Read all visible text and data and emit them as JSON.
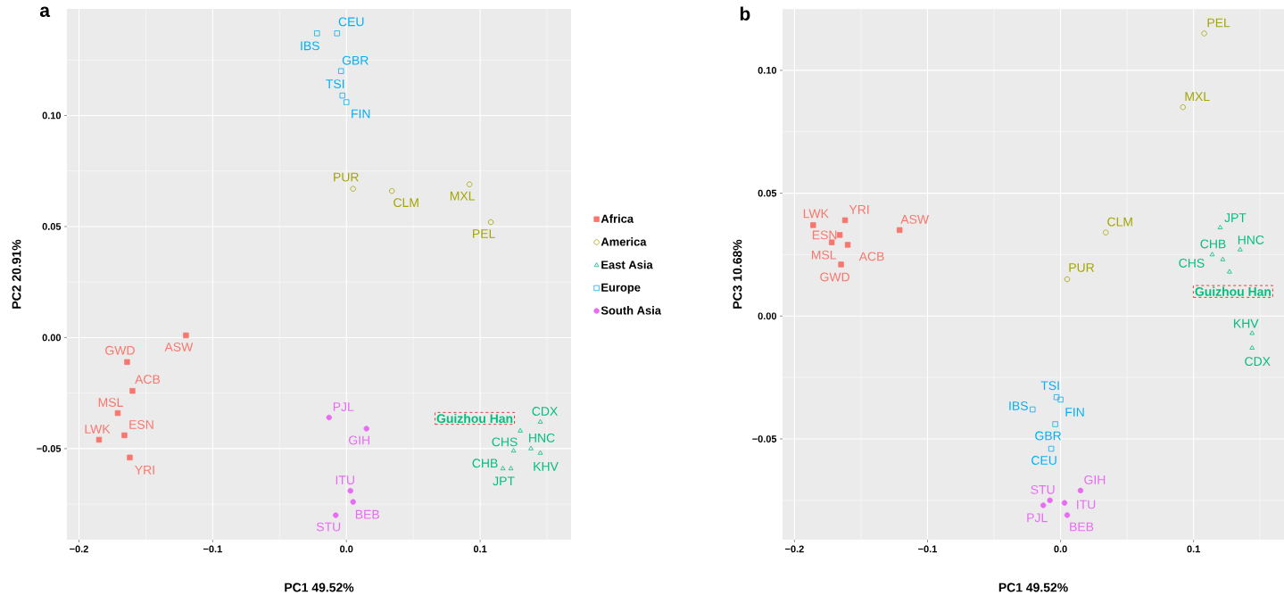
{
  "chart_data": [
    {
      "type": "scatter",
      "title": "a",
      "xlabel": "PC1 49.52%",
      "ylabel": "PC2 20.91%",
      "xlim": [
        -0.209,
        0.168
      ],
      "ylim": [
        -0.091,
        0.148
      ],
      "grid": true,
      "legend": "right",
      "xticks": [
        {
          "value": -0.2,
          "label": "−0.2"
        },
        {
          "value": -0.1,
          "label": "−0.1"
        },
        {
          "value": 0.0,
          "label": "0.0"
        },
        {
          "value": 0.1,
          "label": "0.1"
        }
      ],
      "yticks": [
        {
          "value": -0.05,
          "label": "−0.05"
        },
        {
          "value": 0.0,
          "label": "0.00"
        },
        {
          "value": 0.05,
          "label": "0.05"
        },
        {
          "value": 0.1,
          "label": "0.10"
        }
      ],
      "series": [
        {
          "name": "Africa",
          "color": "#f8766d",
          "marker": "square",
          "x": [
            -0.12,
            -0.164,
            -0.16,
            -0.171,
            -0.166,
            -0.185,
            -0.162
          ],
          "values": [
            0.001,
            -0.011,
            -0.024,
            -0.034,
            -0.044,
            -0.046,
            -0.054
          ]
        },
        {
          "name": "America",
          "color": "#a3a500",
          "marker": "circle",
          "x": [
            0.005,
            0.034,
            0.092,
            0.108
          ],
          "values": [
            0.067,
            0.066,
            0.069,
            0.052
          ]
        },
        {
          "name": "East Asia",
          "color": "#00bf7d",
          "marker": "triangle",
          "x": [
            0.145,
            0.125,
            0.138,
            0.145,
            0.117,
            0.123,
            0.13
          ],
          "values": [
            -0.038,
            -0.051,
            -0.05,
            -0.052,
            -0.059,
            -0.059,
            -0.042
          ]
        },
        {
          "name": "Europe",
          "color": "#00b0f6",
          "marker": "square",
          "x": [
            -0.022,
            -0.007,
            -0.004,
            -0.003,
            0.0
          ],
          "values": [
            0.137,
            0.137,
            0.12,
            0.109,
            0.106
          ]
        },
        {
          "name": "South Asia",
          "color": "#e76bf3",
          "marker": "circle",
          "x": [
            -0.013,
            0.015,
            0.003,
            0.005,
            -0.008
          ],
          "values": [
            -0.036,
            -0.041,
            -0.069,
            -0.074,
            -0.08
          ]
        }
      ],
      "annotations": [
        {
          "text": "ASW",
          "x": -0.12,
          "y": 0.001
        },
        {
          "text": "GWD",
          "x": -0.164,
          "y": -0.011
        },
        {
          "text": "ACB",
          "x": -0.16,
          "y": -0.024
        },
        {
          "text": "MSL",
          "x": -0.171,
          "y": -0.034
        },
        {
          "text": "ESN",
          "x": -0.166,
          "y": -0.044
        },
        {
          "text": "LWK",
          "x": -0.185,
          "y": -0.046
        },
        {
          "text": "YRI",
          "x": -0.162,
          "y": -0.054
        },
        {
          "text": "PUR",
          "x": 0.005,
          "y": 0.067
        },
        {
          "text": "CLM",
          "x": 0.034,
          "y": 0.066
        },
        {
          "text": "MXL",
          "x": 0.092,
          "y": 0.069
        },
        {
          "text": "PEL",
          "x": 0.108,
          "y": 0.052
        },
        {
          "text": "CDX",
          "x": 0.145,
          "y": -0.038
        },
        {
          "text": "CHS",
          "x": 0.125,
          "y": -0.051
        },
        {
          "text": "HNC",
          "x": 0.138,
          "y": -0.05
        },
        {
          "text": "KHV",
          "x": 0.145,
          "y": -0.052
        },
        {
          "text": "CHB",
          "x": 0.117,
          "y": -0.059
        },
        {
          "text": "JPT",
          "x": 0.123,
          "y": -0.059
        },
        {
          "text": "IBS",
          "x": -0.022,
          "y": 0.137
        },
        {
          "text": "CEU",
          "x": -0.007,
          "y": 0.137
        },
        {
          "text": "GBR",
          "x": -0.004,
          "y": 0.12
        },
        {
          "text": "TSI",
          "x": -0.003,
          "y": 0.109
        },
        {
          "text": "FIN",
          "x": 0.0,
          "y": 0.106
        },
        {
          "text": "PJL",
          "x": -0.013,
          "y": -0.036
        },
        {
          "text": "GIH",
          "x": 0.015,
          "y": -0.041
        },
        {
          "text": "ITU",
          "x": 0.003,
          "y": -0.069
        },
        {
          "text": "BEB",
          "x": 0.005,
          "y": -0.074
        },
        {
          "text": "STU",
          "x": -0.008,
          "y": -0.08
        },
        {
          "text": "Guizhou Han",
          "x": 0.13,
          "y": -0.042
        }
      ]
    },
    {
      "type": "scatter",
      "title": "b",
      "xlabel": "PC1 49.52%",
      "ylabel": "PC3 10.68%",
      "xlim": [
        -0.209,
        0.168
      ],
      "ylim": [
        -0.091,
        0.125
      ],
      "grid": true,
      "xticks": [
        {
          "value": -0.2,
          "label": "−0.2"
        },
        {
          "value": -0.1,
          "label": "−0.1"
        },
        {
          "value": 0.0,
          "label": "0.0"
        },
        {
          "value": 0.1,
          "label": "0.1"
        }
      ],
      "yticks": [
        {
          "value": -0.05,
          "label": "−0.05"
        },
        {
          "value": 0.0,
          "label": "0.00"
        },
        {
          "value": 0.05,
          "label": "0.05"
        },
        {
          "value": 0.1,
          "label": "0.10"
        }
      ],
      "series": [
        {
          "color": "#f8766d",
          "marker": "square",
          "x": [
            -0.121,
            -0.165,
            -0.16,
            -0.172,
            -0.166,
            -0.186,
            -0.162
          ],
          "values": [
            0.035,
            0.021,
            0.029,
            0.03,
            0.033,
            0.037,
            0.039
          ]
        },
        {
          "color": "#a3a500",
          "marker": "circle",
          "x": [
            0.005,
            0.034,
            0.092,
            0.108
          ],
          "values": [
            0.015,
            0.034,
            0.085,
            0.115
          ]
        },
        {
          "color": "#00bf7d",
          "marker": "triangle",
          "x": [
            0.144,
            0.122,
            0.135,
            0.144,
            0.114,
            0.12,
            0.127
          ],
          "values": [
            -0.013,
            0.023,
            0.027,
            -0.007,
            0.025,
            0.036,
            0.018
          ]
        },
        {
          "color": "#00b0f6",
          "marker": "square",
          "x": [
            -0.021,
            -0.007,
            -0.004,
            -0.003,
            0.0
          ],
          "values": [
            -0.038,
            -0.054,
            -0.044,
            -0.033,
            -0.034
          ]
        },
        {
          "color": "#e76bf3",
          "marker": "circle",
          "x": [
            -0.013,
            0.015,
            0.003,
            0.005,
            -0.008
          ],
          "values": [
            -0.077,
            -0.071,
            -0.076,
            -0.081,
            -0.075
          ]
        }
      ],
      "annotations": [
        {
          "text": "ASW",
          "x": -0.121,
          "y": 0.035
        },
        {
          "text": "GWD",
          "x": -0.165,
          "y": 0.021
        },
        {
          "text": "ACB",
          "x": -0.16,
          "y": 0.029
        },
        {
          "text": "MSL",
          "x": -0.172,
          "y": 0.03
        },
        {
          "text": "ESN",
          "x": -0.166,
          "y": 0.033
        },
        {
          "text": "LWK",
          "x": -0.186,
          "y": 0.037
        },
        {
          "text": "YRI",
          "x": -0.162,
          "y": 0.039
        },
        {
          "text": "PUR",
          "x": 0.005,
          "y": 0.015
        },
        {
          "text": "CLM",
          "x": 0.034,
          "y": 0.034
        },
        {
          "text": "MXL",
          "x": 0.092,
          "y": 0.085
        },
        {
          "text": "PEL",
          "x": 0.108,
          "y": 0.115
        },
        {
          "text": "CDX",
          "x": 0.144,
          "y": -0.013
        },
        {
          "text": "CHS",
          "x": 0.122,
          "y": 0.023
        },
        {
          "text": "HNC",
          "x": 0.135,
          "y": 0.027
        },
        {
          "text": "KHV",
          "x": 0.144,
          "y": -0.007
        },
        {
          "text": "CHB",
          "x": 0.114,
          "y": 0.025
        },
        {
          "text": "JPT",
          "x": 0.12,
          "y": 0.036
        },
        {
          "text": "IBS",
          "x": -0.021,
          "y": -0.038
        },
        {
          "text": "CEU",
          "x": -0.007,
          "y": -0.054
        },
        {
          "text": "GBR",
          "x": -0.004,
          "y": -0.044
        },
        {
          "text": "TSI",
          "x": -0.003,
          "y": -0.033
        },
        {
          "text": "FIN",
          "x": 0.0,
          "y": -0.034
        },
        {
          "text": "PJL",
          "x": -0.013,
          "y": -0.077
        },
        {
          "text": "GIH",
          "x": 0.015,
          "y": -0.071
        },
        {
          "text": "ITU",
          "x": 0.003,
          "y": -0.076
        },
        {
          "text": "BEB",
          "x": 0.005,
          "y": -0.081
        },
        {
          "text": "STU",
          "x": -0.008,
          "y": -0.075
        },
        {
          "text": "Guizhou Han",
          "x": 0.127,
          "y": 0.018
        }
      ]
    }
  ]
}
